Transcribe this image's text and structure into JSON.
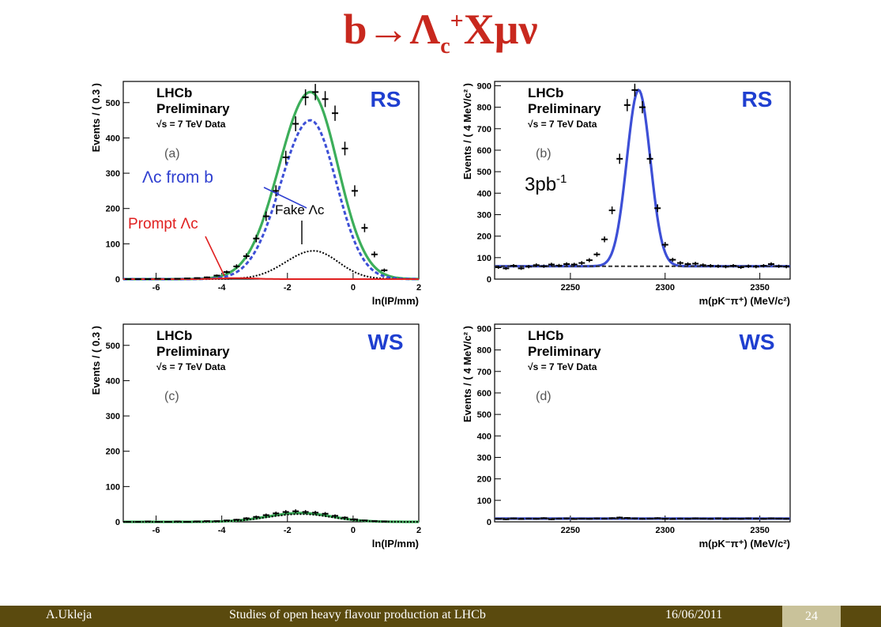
{
  "slide": {
    "title_main": "b→Λ",
    "title_sub": "c",
    "title_sup": "+",
    "title_rest": "Xμν"
  },
  "footer": {
    "author": "A.Ukleja",
    "talk": "Studies of open heavy flavour production at LHCb",
    "date": "16/06/2011",
    "page": "24"
  },
  "chart_data": [
    {
      "id": "a",
      "type": "line",
      "lhcb": "LHCb",
      "prelim": "Preliminary",
      "sqrt_text": "√s = 7 TeV Data",
      "tag": "(a)",
      "sample": "RS",
      "xlabel": "ln(IP/mm)",
      "ylabel": "Events / ( 0.3 )",
      "xlim": [
        -7,
        2
      ],
      "ylim": [
        0,
        560
      ],
      "xticks": [
        -6,
        -4,
        -2,
        0,
        2
      ],
      "yticks": [
        0,
        100,
        200,
        300,
        400,
        500
      ],
      "annotations": {
        "from_b": "Λc from b",
        "prompt": "Prompt Λc",
        "fake": "Fake Λc"
      },
      "series": [
        {
          "kind": "total",
          "color": "#3cae5a",
          "dash": "",
          "peak": 530,
          "mu": -1.3,
          "sigma": 0.95,
          "tail": 0.4
        },
        {
          "kind": "from_b",
          "color": "#3d4fd6",
          "dash": "5,3",
          "peak": 450,
          "mu": -1.3,
          "sigma": 0.9,
          "tail": 0.4
        },
        {
          "kind": "fake",
          "color": "#000000",
          "dash": "2,2",
          "peak": 80,
          "mu": -1.2,
          "sigma": 0.85,
          "tail": 0.4
        },
        {
          "kind": "prompt",
          "color": "#e02020",
          "dash": "",
          "peak": 3,
          "mu": -3.5,
          "sigma": 0.5,
          "tail": 0
        }
      ],
      "points": {
        "x": [
          -6.85,
          -6.55,
          -6.25,
          -5.95,
          -5.65,
          -5.35,
          -5.05,
          -4.75,
          -4.45,
          -4.15,
          -3.85,
          -3.55,
          -3.25,
          -2.95,
          -2.65,
          -2.35,
          -2.05,
          -1.75,
          -1.45,
          -1.15,
          -0.85,
          -0.55,
          -0.25,
          0.05,
          0.35,
          0.65,
          0.95
        ],
        "y": [
          0,
          0,
          0,
          1,
          0,
          1,
          2,
          3,
          5,
          10,
          20,
          36,
          65,
          115,
          178,
          250,
          345,
          440,
          515,
          530,
          510,
          470,
          370,
          250,
          145,
          70,
          25
        ]
      }
    },
    {
      "id": "b",
      "type": "line",
      "lhcb": "LHCb",
      "prelim": "Preliminary",
      "sqrt_text": "√s = 7 TeV Data",
      "tag": "(b)",
      "sample": "RS",
      "lumi": "3pb",
      "lumi_sup": "-1",
      "xlabel": "m(pK⁻π⁺) (MeV/c²)",
      "ylabel": "Events / ( 4 MeV/c² )",
      "xlim": [
        2210,
        2366
      ],
      "ylim": [
        0,
        920
      ],
      "xticks": [
        2250,
        2300,
        2350
      ],
      "yticks": [
        0,
        100,
        200,
        300,
        400,
        500,
        600,
        700,
        800,
        900
      ],
      "series": [
        {
          "kind": "fit",
          "color": "#3d4fd6",
          "dash": "",
          "peak": 820,
          "mu": 2286,
          "sigma": 6.2,
          "bkg": 60
        },
        {
          "kind": "background",
          "color": "#333333",
          "dash": "5,3",
          "bkg": 60
        }
      ],
      "points": {
        "x": [
          2212,
          2216,
          2220,
          2224,
          2228,
          2232,
          2236,
          2240,
          2244,
          2248,
          2252,
          2256,
          2260,
          2264,
          2268,
          2272,
          2276,
          2280,
          2284,
          2288,
          2292,
          2296,
          2300,
          2304,
          2308,
          2312,
          2316,
          2320,
          2324,
          2328,
          2332,
          2336,
          2340,
          2344,
          2348,
          2352,
          2356,
          2360,
          2364
        ],
        "y": [
          55,
          50,
          62,
          50,
          58,
          65,
          60,
          68,
          63,
          70,
          68,
          75,
          88,
          115,
          185,
          320,
          560,
          810,
          880,
          800,
          560,
          330,
          160,
          90,
          75,
          70,
          72,
          65,
          62,
          60,
          58,
          62,
          55,
          60,
          58,
          62,
          70,
          60,
          58
        ]
      }
    },
    {
      "id": "c",
      "type": "line",
      "lhcb": "LHCb",
      "prelim": "Preliminary",
      "sqrt_text": "√s = 7 TeV Data",
      "tag": "(c)",
      "sample": "WS",
      "xlabel": "ln(IP/mm)",
      "ylabel": "Events / ( 0.3 )",
      "xlim": [
        -7,
        2
      ],
      "ylim": [
        0,
        560
      ],
      "xticks": [
        -6,
        -4,
        -2,
        0,
        2
      ],
      "yticks": [
        0,
        100,
        200,
        300,
        400,
        500
      ],
      "series": [
        {
          "kind": "total",
          "color": "#3cae5a",
          "dash": "",
          "peak": 25,
          "mu": -1.6,
          "sigma": 1.0,
          "tail": 0.2
        },
        {
          "kind": "fake",
          "color": "#000000",
          "dash": "2,2",
          "peak": 22,
          "mu": -1.6,
          "sigma": 1.0,
          "tail": 0.2
        }
      ],
      "points": {
        "x": [
          -6.85,
          -6.55,
          -6.25,
          -5.95,
          -5.65,
          -5.35,
          -5.05,
          -4.75,
          -4.45,
          -4.15,
          -3.85,
          -3.55,
          -3.25,
          -2.95,
          -2.65,
          -2.35,
          -2.05,
          -1.75,
          -1.45,
          -1.15,
          -0.85,
          -0.55,
          -0.25,
          0.05,
          0.35,
          0.65,
          0.95
        ],
        "y": [
          0,
          0,
          1,
          0,
          0,
          1,
          0,
          1,
          2,
          2,
          4,
          6,
          10,
          14,
          19,
          24,
          28,
          30,
          28,
          26,
          23,
          17,
          12,
          7,
          4,
          2,
          1
        ]
      }
    },
    {
      "id": "d",
      "type": "line",
      "lhcb": "LHCb",
      "prelim": "Preliminary",
      "sqrt_text": "√s = 7 TeV Data",
      "tag": "(d)",
      "sample": "WS",
      "xlabel": "m(pK⁻π⁺) (MeV/c²)",
      "ylabel": "Events / ( 4 MeV/c² )",
      "xlim": [
        2210,
        2366
      ],
      "ylim": [
        0,
        920
      ],
      "xticks": [
        2250,
        2300,
        2350
      ],
      "yticks": [
        0,
        100,
        200,
        300,
        400,
        500,
        600,
        700,
        800,
        900
      ],
      "series": [
        {
          "kind": "fit",
          "color": "#3d4fd6",
          "dash": "",
          "peak": 0,
          "mu": 2286,
          "sigma": 6.2,
          "bkg": 15
        },
        {
          "kind": "background",
          "color": "#333333",
          "dash": "5,3",
          "bkg": 15
        }
      ],
      "points": {
        "x": [
          2212,
          2216,
          2220,
          2224,
          2228,
          2232,
          2236,
          2240,
          2244,
          2248,
          2252,
          2256,
          2260,
          2264,
          2268,
          2272,
          2276,
          2280,
          2284,
          2288,
          2292,
          2296,
          2300,
          2304,
          2308,
          2312,
          2316,
          2320,
          2324,
          2328,
          2332,
          2336,
          2340,
          2344,
          2348,
          2352,
          2356,
          2360,
          2364
        ],
        "y": [
          14,
          12,
          16,
          13,
          15,
          14,
          17,
          12,
          15,
          16,
          13,
          15,
          14,
          16,
          15,
          17,
          20,
          18,
          16,
          14,
          15,
          17,
          14,
          13,
          15,
          14,
          16,
          15,
          14,
          16,
          13,
          15,
          14,
          16,
          15,
          14,
          16,
          15,
          14
        ]
      }
    }
  ]
}
